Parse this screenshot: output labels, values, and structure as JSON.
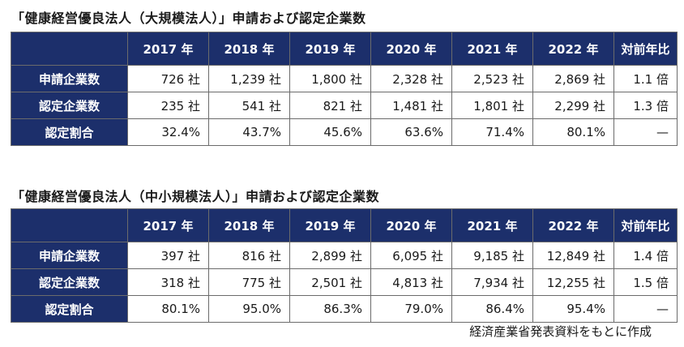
{
  "table1": {
    "title": "「健康経営優良法人（大規模法人）」申請および認定企業数",
    "headers": [
      "",
      "2017 年",
      "2018 年",
      "2019 年",
      "2020 年",
      "2021 年",
      "2022 年",
      "対前年比"
    ],
    "rows": [
      {
        "label": "申請企業数",
        "cells": [
          "726 社",
          "1,239 社",
          "1,800 社",
          "2,328 社",
          "2,523 社",
          "2,869 社",
          "1.1 倍"
        ]
      },
      {
        "label": "認定企業数",
        "cells": [
          "235 社",
          "541 社",
          "821 社",
          "1,481 社",
          "1,801 社",
          "2,299 社",
          "1.3 倍"
        ]
      },
      {
        "label": "認定割合",
        "cells": [
          "32.4%",
          "43.7%",
          "45.6%",
          "63.6%",
          "71.4%",
          "80.1%",
          "—"
        ]
      }
    ]
  },
  "table2": {
    "title": "「健康経営優良法人（中小規模法人）」申請および認定企業数",
    "headers": [
      "",
      "2017 年",
      "2018 年",
      "2019 年",
      "2020 年",
      "2021 年",
      "2022 年",
      "対前年比"
    ],
    "rows": [
      {
        "label": "申請企業数",
        "cells": [
          "397 社",
          "816 社",
          "2,899 社",
          "6,095 社",
          "9,185 社",
          "12,849 社",
          "1.4 倍"
        ]
      },
      {
        "label": "認定企業数",
        "cells": [
          "318 社",
          "775 社",
          "2,501 社",
          "4,813 社",
          "7,934 社",
          "12,255 社",
          "1.5 倍"
        ]
      },
      {
        "label": "認定割合",
        "cells": [
          "80.1%",
          "95.0%",
          "86.3%",
          "79.0%",
          "86.4%",
          "95.4%",
          "—"
        ]
      }
    ]
  },
  "source": "経済産業省発表資料をもとに作成",
  "colors": {
    "header_bg": "#1c2f6b",
    "header_text": "#ffffff",
    "border": "#6b6b6b"
  }
}
